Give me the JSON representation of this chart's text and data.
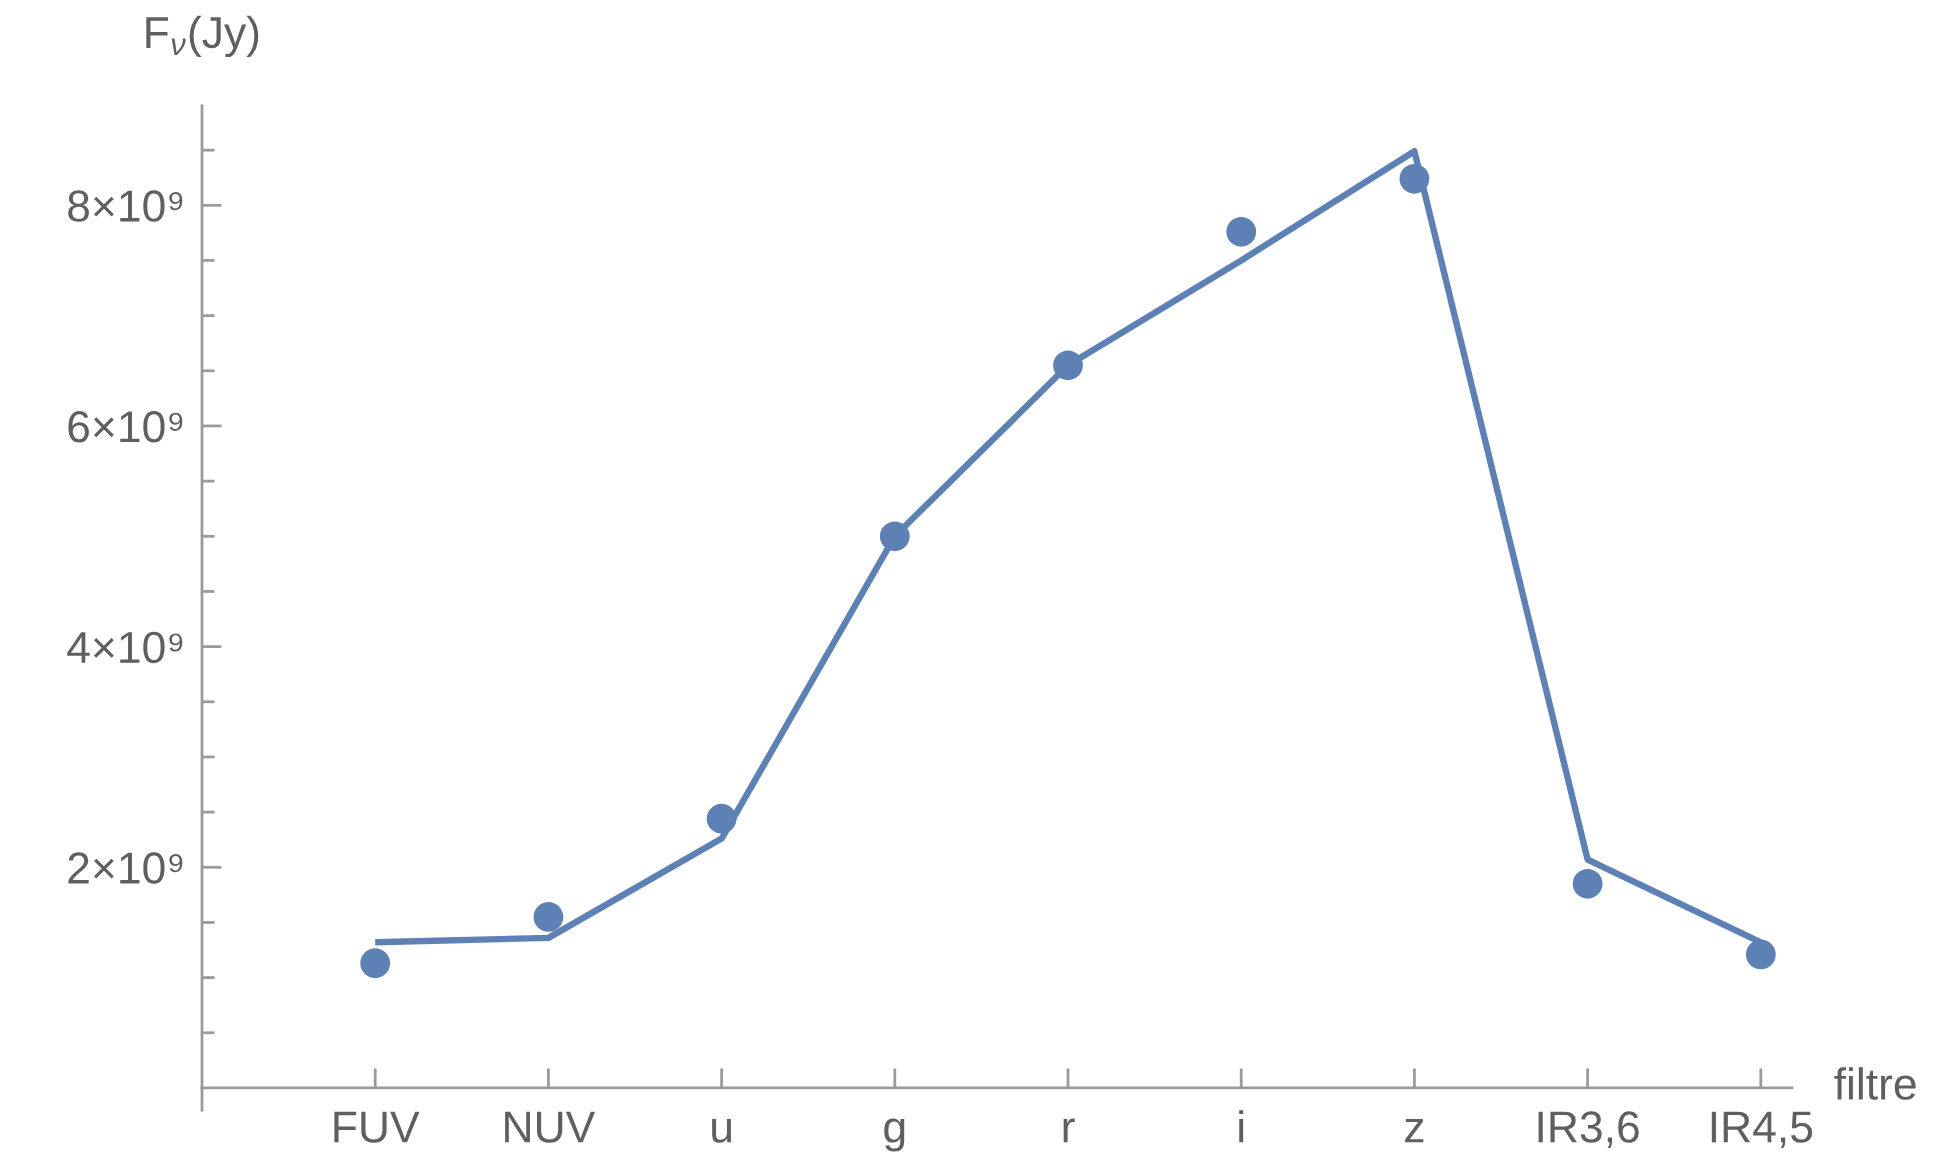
{
  "chart_data": {
    "type": "line",
    "xlabel": "filtre",
    "ylabel": "F$_{ν}$(Jy)",
    "categories": [
      "FUV",
      "NUV",
      "u",
      "g",
      "r",
      "i",
      "z",
      "IR3,6",
      "IR4,5"
    ],
    "series": [
      {
        "type": "line",
        "color": "#5e81b5",
        "line_style": "solid",
        "values": [
          1320000000.0,
          1360000000.0,
          2260000000.0,
          5000000000.0,
          6550000000.0,
          7500000000.0,
          8490000000.0,
          2070000000.0,
          1320000000.0
        ]
      },
      {
        "type": "scatter",
        "color": "#5e81b5",
        "marker": "circle",
        "values": [
          1130000000.0,
          1550000000.0,
          2440000000.0,
          5000000000.0,
          6550000000.0,
          7760000000.0,
          8240000000.0,
          1850000000.0,
          1210000000.0
        ]
      }
    ],
    "ylim": [
      -200000000.0,
      8900000000.0
    ],
    "yticks": [
      {
        "value": 500000000.0,
        "label": null
      },
      {
        "value": 1000000000.0,
        "label": null
      },
      {
        "value": 1500000000.0,
        "label": null
      },
      {
        "value": 2000000000.0,
        "label": "2×10⁹"
      },
      {
        "value": 2500000000.0,
        "label": null
      },
      {
        "value": 3000000000.0,
        "label": null
      },
      {
        "value": 3500000000.0,
        "label": null
      },
      {
        "value": 4000000000.0,
        "label": "4×10⁹"
      },
      {
        "value": 4500000000.0,
        "label": null
      },
      {
        "value": 5000000000.0,
        "label": null
      },
      {
        "value": 5500000000.0,
        "label": null
      },
      {
        "value": 6000000000.0,
        "label": "6×10⁹"
      },
      {
        "value": 6500000000.0,
        "label": null
      },
      {
        "value": 7000000000.0,
        "label": null
      },
      {
        "value": 7500000000.0,
        "label": null
      },
      {
        "value": 8000000000.0,
        "label": "8×10⁹"
      },
      {
        "value": 8500000000.0,
        "label": null
      }
    ]
  }
}
